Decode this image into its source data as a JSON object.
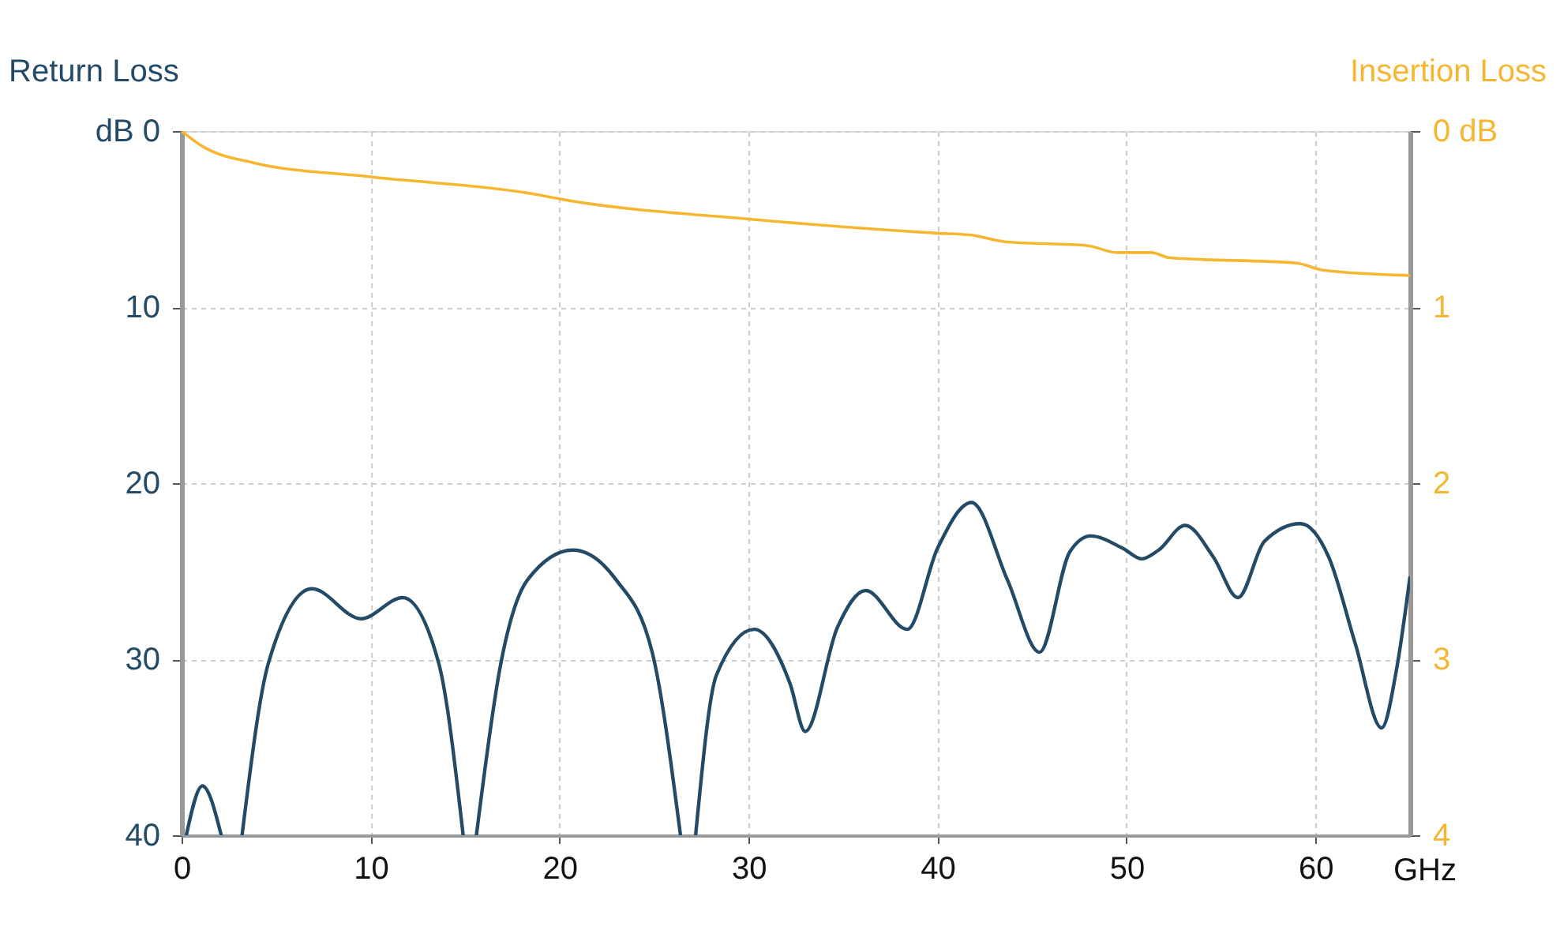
{
  "chart_data": {
    "type": "line",
    "xlabel": "GHz",
    "ylabel": "Return Loss",
    "y2label": "Insertion Loss",
    "xlim": [
      0,
      65
    ],
    "xticks": [
      0,
      10,
      20,
      30,
      40,
      50,
      60
    ],
    "ylim": [
      40,
      0
    ],
    "yticks": [
      {
        "value": 0,
        "label": "dB 0"
      },
      10,
      20,
      30,
      40
    ],
    "y2lim": [
      4,
      0
    ],
    "y2ticks": [
      {
        "value": 0,
        "label": "0 dB"
      },
      1,
      2,
      3,
      4
    ],
    "grid": true,
    "line_style": "solid",
    "series": [
      {
        "color": "#234a66",
        "x": [
          0.25,
          1.1,
          2.1,
          2.6,
          3.2,
          4.6,
          6.9,
          9.5,
          11.7,
          13.6,
          14.9,
          15.2,
          15.6,
          16.9,
          18.3,
          20.7,
          23.0,
          24.9,
          26.4,
          26.8,
          27.2,
          28.3,
          30.3,
          32.2,
          33.0,
          34.7,
          36.2,
          38.4,
          40.0,
          41.8,
          43.7,
          45.4,
          47.0,
          48.1,
          49.8,
          50.8,
          51.7,
          53.1,
          54.6,
          55.9,
          57.3,
          59.2,
          60.7,
          62.1,
          63.5,
          64.3,
          65.0
        ],
        "values": [
          40,
          37.2,
          40,
          null,
          40,
          30.2,
          26.0,
          27.7,
          26.5,
          30.2,
          40,
          null,
          40,
          30.2,
          25.5,
          23.8,
          25.5,
          29.6,
          40,
          null,
          40,
          30.9,
          28.3,
          31.4,
          34.1,
          28.2,
          26.1,
          28.3,
          23.7,
          21.1,
          25.5,
          29.6,
          23.9,
          23.0,
          23.7,
          24.3,
          23.8,
          22.4,
          24.2,
          26.5,
          23.3,
          22.3,
          24.2,
          29.1,
          33.9,
          30.5,
          25.3
        ]
      },
      {
        "color": "#f5b731",
        "axis": "y2",
        "x": [
          0,
          1.0,
          3.8,
          10,
          18.2,
          20.8,
          30,
          40,
          41.7,
          43.7,
          47.9,
          49.5,
          51.3,
          52.3,
          59.0,
          60.4,
          65.0
        ],
        "values": [
          0.0,
          0.08,
          0.18,
          0.26,
          0.35,
          0.4,
          0.5,
          0.58,
          0.59,
          0.63,
          0.65,
          0.69,
          0.69,
          0.72,
          0.75,
          0.79,
          0.82
        ]
      }
    ]
  }
}
